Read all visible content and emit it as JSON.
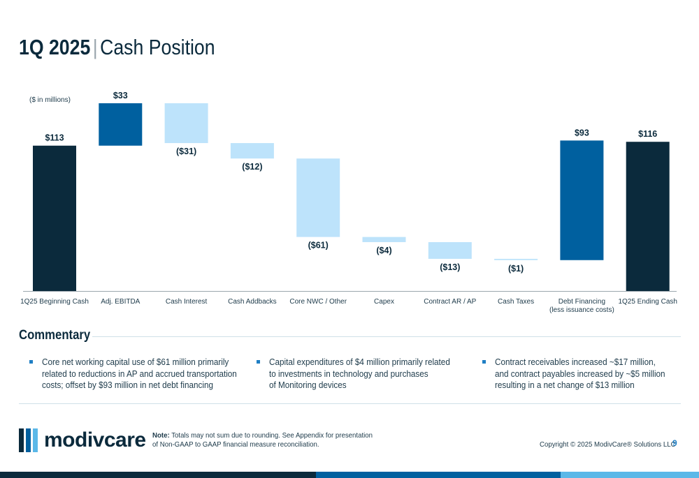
{
  "header": {
    "title_bold": "1Q 2025",
    "title_separator": "|",
    "title_light": "Cash Position"
  },
  "chart_data": {
    "type": "bar",
    "subtype": "waterfall",
    "unit_note": "($ in millions)",
    "categories": [
      "1Q25 Beginning Cash",
      "Adj. EBITDA",
      "Cash Interest",
      "Cash Addbacks",
      "Core NWC / Other",
      "Capex",
      "Contract AR / AP",
      "Cash Taxes",
      "Debt Financing\n(less issuance costs)",
      "1Q25 Ending Cash"
    ],
    "values": [
      113,
      33,
      -31,
      -12,
      -61,
      -4,
      -13,
      -1,
      93,
      116
    ],
    "value_labels": [
      "$113",
      "$33",
      "($31)",
      "($12)",
      "($61)",
      "($4)",
      "($13)",
      "($1)",
      "$93",
      "$116"
    ],
    "bar_kinds": [
      "total",
      "increase",
      "decrease",
      "decrease",
      "decrease",
      "decrease",
      "decrease",
      "decrease",
      "increase",
      "total"
    ],
    "colors": {
      "total": "#0b2a3c",
      "increase": "#00609f",
      "decrease": "#bde3fb",
      "label": "#0b2a3c",
      "axis": "#9aa6ad",
      "tick_label": "#1d3a4a"
    },
    "ylim": [
      0,
      150
    ],
    "grid": false,
    "legend": "none"
  },
  "commentary": {
    "title": "Commentary",
    "bullets": [
      [
        "Core net working capital use of $61 million primarily",
        "related to reductions in AP and accrued transportation",
        "costs; offset by $93 million in net debt financing"
      ],
      [
        "Capital expenditures of $4 million primarily related",
        "to investments in technology and purchases",
        "of Monitoring devices"
      ],
      [
        "Contract receivables increased ~$17 million,",
        "and contract payables increased by ~$5 million",
        "resulting in a net change of $13 million"
      ]
    ]
  },
  "footer": {
    "logo_text": "modivcare",
    "logo_colors": [
      "#0b2a3c",
      "#00609f",
      "#5bb8e8"
    ],
    "note_label": "Note:",
    "note_line1": " Totals may not sum due to rounding. See Appendix for presentation",
    "note_line2": "of Non-GAAP to GAAP financial measure reconciliation.",
    "copyright": "Copyright © 2025 ModivCare® Solutions LLC",
    "page_number": "9",
    "bar_colors": [
      "#0b2a3c",
      "#00609f",
      "#5bb8e8"
    ]
  }
}
